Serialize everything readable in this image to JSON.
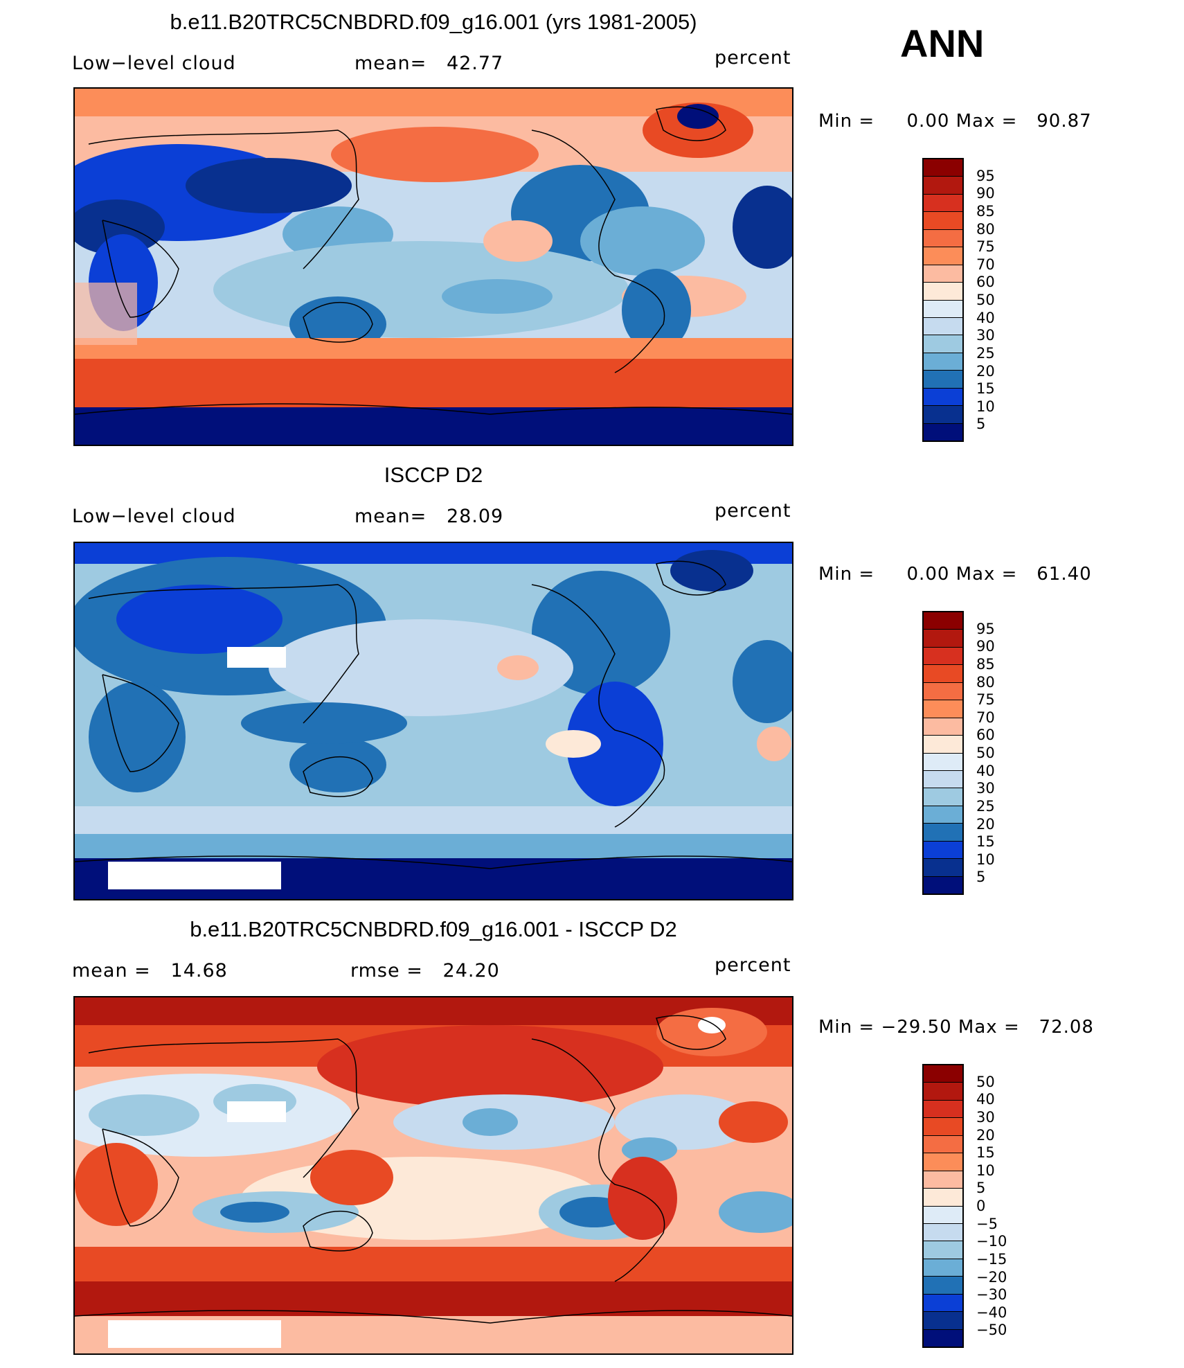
{
  "season": "ANN",
  "panels": [
    {
      "title": "b.e11.B20TRC5CNBDRD.f09_g16.001 (yrs 1981-2005)",
      "left_label": "Low−level cloud",
      "center_label": "mean=   42.77",
      "units": "percent",
      "minmax": "Min =     0.00 Max =   90.87",
      "colorbar_labels": [
        "95",
        "90",
        "85",
        "80",
        "75",
        "70",
        "60",
        "50",
        "40",
        "30",
        "25",
        "20",
        "15",
        "10",
        "5"
      ],
      "colorbar_colors": [
        "#8b0000",
        "#b2180f",
        "#d7301f",
        "#e84a24",
        "#f46d43",
        "#fc8d59",
        "#fcbba1",
        "#fde9d8",
        "#deebf7",
        "#c6dbef",
        "#9ecae1",
        "#6baed6",
        "#2171b5",
        "#0b3fd6",
        "#08308f",
        "#000f7a"
      ]
    },
    {
      "title": "ISCCP D2",
      "left_label": "Low−level cloud",
      "center_label": "mean=   28.09",
      "units": "percent",
      "minmax": "Min =     0.00 Max =   61.40",
      "colorbar_labels": [
        "95",
        "90",
        "85",
        "80",
        "75",
        "70",
        "60",
        "50",
        "40",
        "30",
        "25",
        "20",
        "15",
        "10",
        "5"
      ],
      "colorbar_colors": [
        "#8b0000",
        "#b2180f",
        "#d7301f",
        "#e84a24",
        "#f46d43",
        "#fc8d59",
        "#fcbba1",
        "#fde9d8",
        "#deebf7",
        "#c6dbef",
        "#9ecae1",
        "#6baed6",
        "#2171b5",
        "#0b3fd6",
        "#08308f",
        "#000f7a"
      ]
    },
    {
      "title": "b.e11.B20TRC5CNBDRD.f09_g16.001 - ISCCP D2",
      "left_label": "mean =   14.68",
      "center_label": "rmse =   24.20",
      "units": "percent",
      "minmax": "Min = −29.50 Max =   72.08",
      "colorbar_labels": [
        "50",
        "40",
        "30",
        "20",
        "15",
        "10",
        "5",
        "0",
        "−5",
        "−10",
        "−15",
        "−20",
        "−30",
        "−40",
        "−50"
      ],
      "colorbar_colors": [
        "#8b0000",
        "#b2180f",
        "#d7301f",
        "#e84a24",
        "#f46d43",
        "#fc8d59",
        "#fcbba1",
        "#fde9d8",
        "#deebf7",
        "#c6dbef",
        "#9ecae1",
        "#6baed6",
        "#2171b5",
        "#0b3fd6",
        "#08308f",
        "#000f7a"
      ]
    }
  ]
}
